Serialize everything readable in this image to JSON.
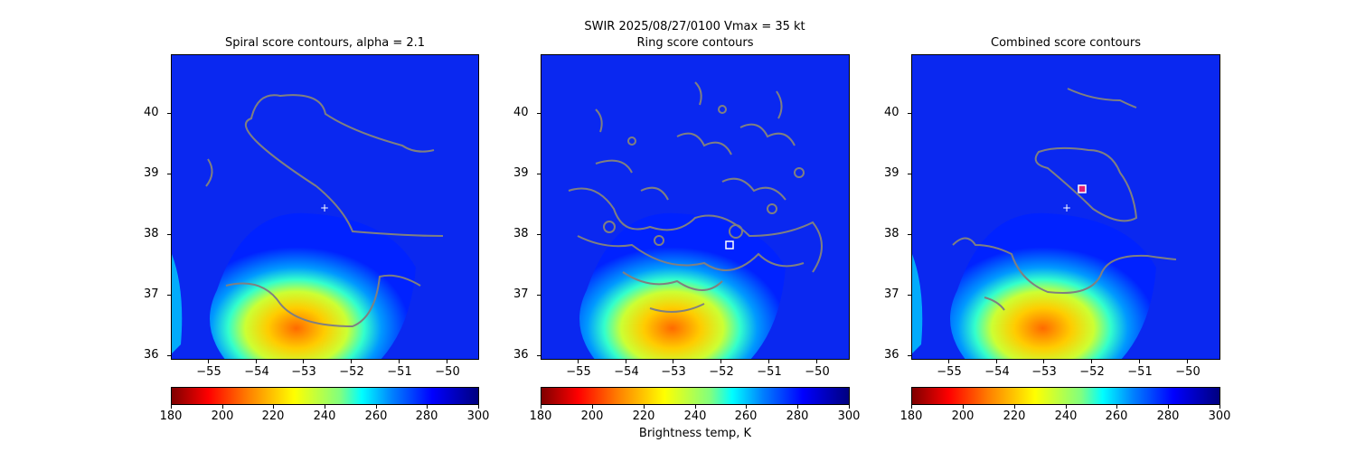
{
  "suptitle": "SWIR  2025/08/27/0100    Vmax = 35 kt",
  "panels": [
    {
      "title": "Spiral score contours, alpha =  2.1"
    },
    {
      "title": "Ring score contours"
    },
    {
      "title": "Combined score contours"
    }
  ],
  "x_ticks": [
    "−55",
    "−54",
    "−53",
    "−52",
    "−51",
    "−50"
  ],
  "y_ticks": [
    "40",
    "39",
    "38",
    "37",
    "36"
  ],
  "colorbar": {
    "ticks": [
      "180",
      "200",
      "220",
      "240",
      "260",
      "280",
      "300"
    ],
    "label": "Brightness temp, K",
    "colormap": "jet_r",
    "range": [
      180,
      300
    ]
  },
  "colors": {
    "contour": "#808080",
    "background_cold": "#0022ff",
    "marker": "#ffffff"
  },
  "chart_data": [
    {
      "type": "heatmap",
      "title": "Spiral score contours, alpha =  2.1",
      "xlim": [
        -55.8,
        -49.5
      ],
      "ylim": [
        36,
        40.9
      ],
      "marker_plus": {
        "x": -52.6,
        "y": 38.45
      }
    },
    {
      "type": "heatmap",
      "title": "Ring score contours",
      "xlim": [
        -55.8,
        -49.5
      ],
      "ylim": [
        36,
        40.9
      ],
      "marker_square": {
        "x": -51.9,
        "y": 37.82
      }
    },
    {
      "type": "heatmap",
      "title": "Combined score contours",
      "xlim": [
        -55.8,
        -49.5
      ],
      "ylim": [
        36,
        40.9
      ],
      "marker_plus": {
        "x": -52.6,
        "y": 38.45
      },
      "marker_square": {
        "x": -52.3,
        "y": 38.76
      }
    }
  ]
}
